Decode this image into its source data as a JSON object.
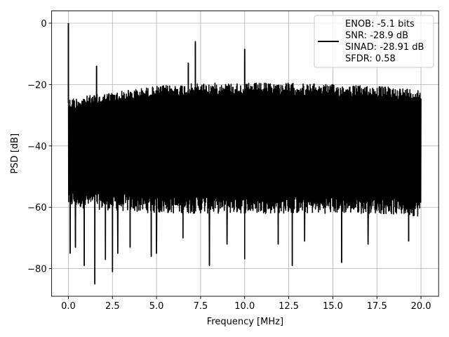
{
  "chart_data": {
    "type": "line",
    "title": "",
    "xlabel": "Frequency [MHz]",
    "ylabel": "PSD [dB]",
    "xlim": [
      -0.95,
      21.0
    ],
    "ylim": [
      -89,
      4
    ],
    "x_ticks": [
      0.0,
      2.5,
      5.0,
      7.5,
      10.0,
      12.5,
      15.0,
      17.5,
      20.0
    ],
    "x_tick_labels": [
      "0.0",
      "2.5",
      "5.0",
      "7.5",
      "10.0",
      "12.5",
      "15.0",
      "17.5",
      "20.0"
    ],
    "y_ticks": [
      0,
      -20,
      -40,
      -60,
      -80
    ],
    "y_tick_labels": [
      "0",
      "−20",
      "−40",
      "−60",
      "−80"
    ],
    "grid": true,
    "legend_position": "top-right",
    "series": [
      {
        "name": "ENOB: -5.1 bits\nSNR: -28.9 dB\nSINAD: -28.91 dB\nSFDR: 0.58",
        "color": "#000000",
        "noise_band": {
          "x_range": [
            0.0,
            20.0
          ],
          "upper_envelope": [
            [
              0.0,
              -24
            ],
            [
              2.5,
              -22
            ],
            [
              5.0,
              -20
            ],
            [
              7.5,
              -19
            ],
            [
              10.0,
              -19
            ],
            [
              12.5,
              -19
            ],
            [
              15.0,
              -19.5
            ],
            [
              17.5,
              -20
            ],
            [
              20.0,
              -21
            ]
          ],
          "lower_envelope": [
            [
              0.0,
              -57
            ],
            [
              2.5,
              -58
            ],
            [
              5.0,
              -59
            ],
            [
              7.5,
              -59
            ],
            [
              10.0,
              -59
            ],
            [
              12.5,
              -59
            ],
            [
              15.0,
              -59
            ],
            [
              17.5,
              -59
            ],
            [
              20.0,
              -60
            ]
          ]
        },
        "peaks": [
          {
            "x": 0.0,
            "y": 0.0
          },
          {
            "x": 1.6,
            "y": -14
          },
          {
            "x": 6.8,
            "y": -13
          },
          {
            "x": 7.2,
            "y": -6
          },
          {
            "x": 10.0,
            "y": -8.5
          }
        ],
        "dips": [
          {
            "x": 0.1,
            "y": -75
          },
          {
            "x": 0.4,
            "y": -73
          },
          {
            "x": 0.9,
            "y": -79
          },
          {
            "x": 1.5,
            "y": -85
          },
          {
            "x": 2.1,
            "y": -77
          },
          {
            "x": 2.5,
            "y": -81
          },
          {
            "x": 2.8,
            "y": -75
          },
          {
            "x": 3.5,
            "y": -73
          },
          {
            "x": 4.7,
            "y": -76
          },
          {
            "x": 5.0,
            "y": -75
          },
          {
            "x": 6.5,
            "y": -70
          },
          {
            "x": 8.0,
            "y": -79
          },
          {
            "x": 9.0,
            "y": -72
          },
          {
            "x": 10.0,
            "y": -77
          },
          {
            "x": 11.9,
            "y": -72
          },
          {
            "x": 12.7,
            "y": -79
          },
          {
            "x": 13.4,
            "y": -71
          },
          {
            "x": 15.5,
            "y": -78
          },
          {
            "x": 17.0,
            "y": -72
          },
          {
            "x": 19.3,
            "y": -71
          }
        ]
      }
    ]
  }
}
